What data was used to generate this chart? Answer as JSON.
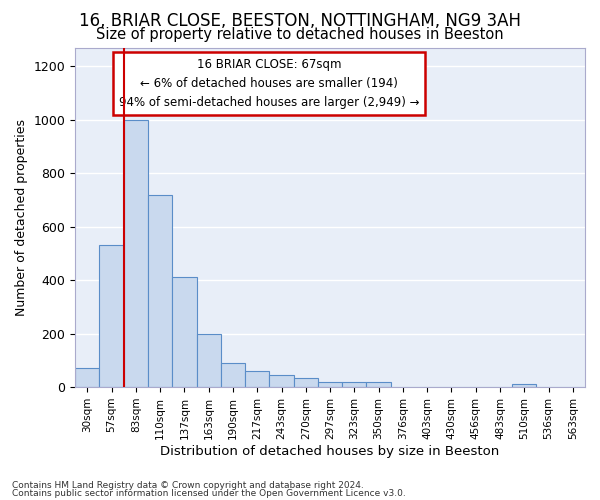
{
  "title1": "16, BRIAR CLOSE, BEESTON, NOTTINGHAM, NG9 3AH",
  "title2": "Size of property relative to detached houses in Beeston",
  "xlabel": "Distribution of detached houses by size in Beeston",
  "ylabel": "Number of detached properties",
  "footer1": "Contains HM Land Registry data © Crown copyright and database right 2024.",
  "footer2": "Contains public sector information licensed under the Open Government Licence v3.0.",
  "categories": [
    "30sqm",
    "57sqm",
    "83sqm",
    "110sqm",
    "137sqm",
    "163sqm",
    "190sqm",
    "217sqm",
    "243sqm",
    "270sqm",
    "297sqm",
    "323sqm",
    "350sqm",
    "376sqm",
    "403sqm",
    "430sqm",
    "456sqm",
    "483sqm",
    "510sqm",
    "536sqm",
    "563sqm"
  ],
  "values": [
    70,
    530,
    1000,
    720,
    410,
    198,
    90,
    60,
    45,
    35,
    20,
    20,
    20,
    0,
    0,
    0,
    0,
    0,
    12,
    0,
    0
  ],
  "bar_color": "#c9d9ee",
  "bar_edge_color": "#5a8dc8",
  "red_line_x": 1.5,
  "annotation_text": "16 BRIAR CLOSE: 67sqm\n← 6% of detached houses are smaller (194)\n94% of semi-detached houses are larger (2,949) →",
  "annotation_box_color": "#ffffff",
  "annotation_border_color": "#cc0000",
  "ylim": [
    0,
    1270
  ],
  "yticks": [
    0,
    200,
    400,
    600,
    800,
    1000,
    1200
  ],
  "background_color": "#e8eef8",
  "grid_color": "#ffffff",
  "title1_fontsize": 12,
  "title2_fontsize": 10.5,
  "xlabel_fontsize": 9.5,
  "ylabel_fontsize": 9
}
